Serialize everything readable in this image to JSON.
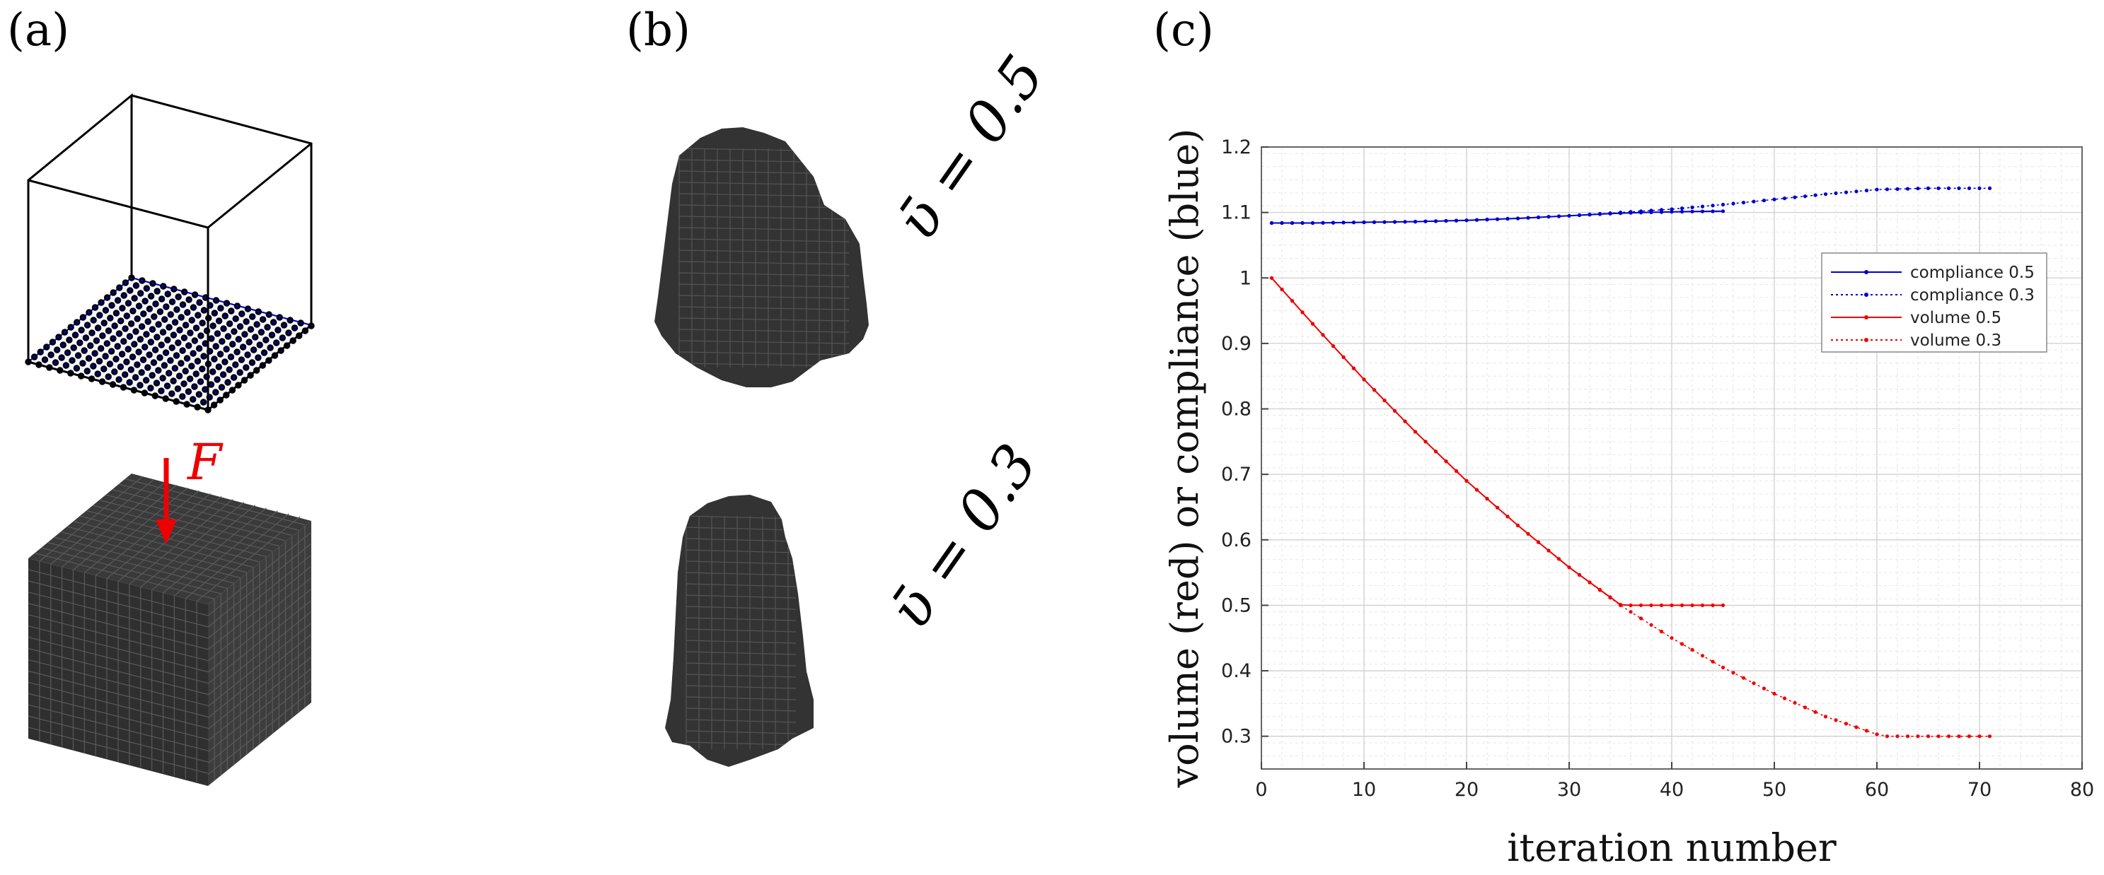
{
  "panels": {
    "a": {
      "label": "(a)",
      "force_label": "F"
    },
    "b": {
      "label": "(b)",
      "top_vbar": "ῡ = 0.5",
      "bottom_vbar": "ῡ = 0.3"
    },
    "c": {
      "label": "(c)"
    }
  },
  "colors": {
    "blue": "#0000cc",
    "red": "#ee0000",
    "solid": "#333333",
    "edge": "#555555",
    "force": "#ee0000"
  },
  "chart_data": {
    "type": "line",
    "xlabel": "iteration number",
    "ylabel": "volume (red) or compliance (blue)",
    "xlim": [
      0,
      80
    ],
    "ylim": [
      0.25,
      1.2
    ],
    "xticks": [
      0,
      10,
      20,
      30,
      40,
      50,
      60,
      70,
      80
    ],
    "yticks": [
      0.3,
      0.4,
      0.5,
      0.6,
      0.7,
      0.8,
      0.9,
      1,
      1.1,
      1.2
    ],
    "ytick_labels": [
      "0.3",
      "0.4",
      "0.5",
      "0.6",
      "0.7",
      "0.8",
      "0.9",
      "1",
      "1.1",
      "1.2"
    ],
    "grid": true,
    "legend_position": "top-right",
    "series": [
      {
        "name": "compliance 0.5",
        "color": "blue",
        "style": "solid",
        "x": [
          1,
          5,
          10,
          15,
          20,
          25,
          30,
          35,
          40,
          45
        ],
        "y": [
          1.084,
          1.084,
          1.085,
          1.086,
          1.088,
          1.091,
          1.095,
          1.099,
          1.101,
          1.102
        ]
      },
      {
        "name": "compliance 0.3",
        "color": "blue",
        "style": "dotted",
        "x": [
          1,
          5,
          10,
          15,
          20,
          25,
          30,
          35,
          40,
          45,
          50,
          55,
          60,
          65,
          71
        ],
        "y": [
          1.084,
          1.084,
          1.085,
          1.086,
          1.088,
          1.091,
          1.095,
          1.1,
          1.105,
          1.112,
          1.12,
          1.128,
          1.135,
          1.137,
          1.137
        ]
      },
      {
        "name": "volume 0.5",
        "color": "red",
        "style": "solid",
        "x": [
          1,
          5,
          10,
          15,
          20,
          25,
          30,
          35,
          36,
          40,
          45
        ],
        "y": [
          1.0,
          0.93,
          0.845,
          0.765,
          0.69,
          0.622,
          0.558,
          0.501,
          0.5,
          0.5,
          0.5
        ]
      },
      {
        "name": "volume 0.3",
        "color": "red",
        "style": "dotted",
        "x": [
          1,
          5,
          10,
          15,
          20,
          25,
          30,
          35,
          40,
          45,
          50,
          55,
          60,
          61,
          65,
          71
        ],
        "y": [
          1.0,
          0.93,
          0.845,
          0.765,
          0.69,
          0.622,
          0.558,
          0.5,
          0.45,
          0.405,
          0.365,
          0.33,
          0.303,
          0.3,
          0.3,
          0.3
        ]
      }
    ]
  }
}
